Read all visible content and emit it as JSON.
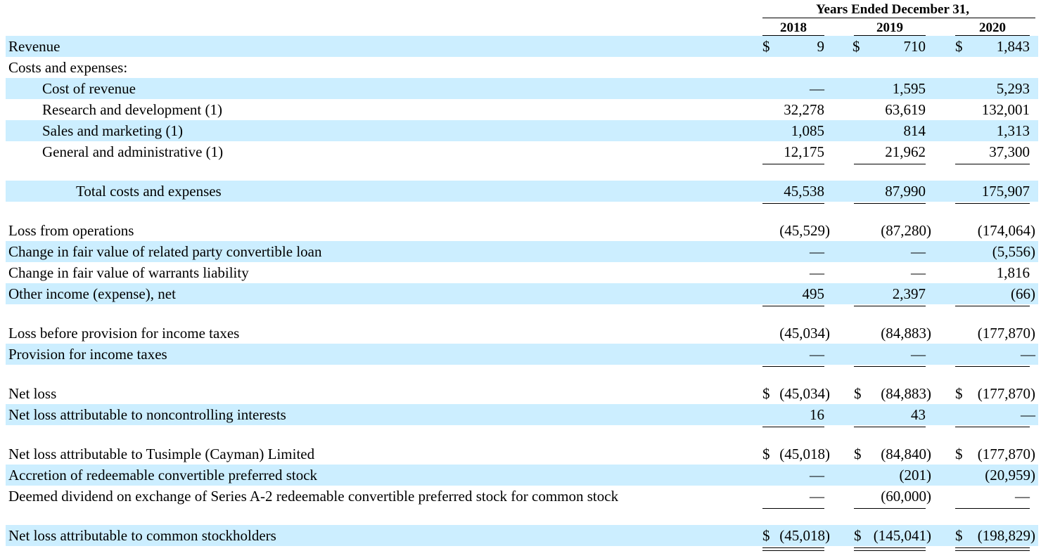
{
  "header": {
    "title": "Years Ended December 31,",
    "years": [
      "2018",
      "2019",
      "2020"
    ]
  },
  "rows": [
    {
      "label": "Revenue",
      "values": [
        "9",
        "710",
        "1,843"
      ],
      "dollar": [
        true,
        true,
        true
      ]
    },
    {
      "label": "Costs and expenses:",
      "values": [
        "",
        "",
        ""
      ]
    },
    {
      "label": "Cost of revenue",
      "values": [
        "—",
        "1,595",
        "5,293"
      ]
    },
    {
      "label": "Research and development (1)",
      "values": [
        "32,278",
        "63,619",
        "132,001"
      ]
    },
    {
      "label": "Sales and marketing (1)",
      "values": [
        "1,085",
        "814",
        "1,313"
      ]
    },
    {
      "label": "General and administrative (1)",
      "values": [
        "12,175",
        "21,962",
        "37,300"
      ]
    },
    {
      "label": "Total costs and expenses",
      "values": [
        "45,538",
        "87,990",
        "175,907"
      ]
    },
    {
      "label": "Loss from operations",
      "values": [
        "(45,529)",
        "(87,280)",
        "(174,064)"
      ]
    },
    {
      "label": "Change in fair value of related party convertible loan",
      "values": [
        "—",
        "—",
        "(5,556)"
      ]
    },
    {
      "label": "Change in fair value of warrants liability",
      "values": [
        "—",
        "—",
        "1,816"
      ]
    },
    {
      "label": "Other income (expense), net",
      "values": [
        "495",
        "2,397",
        "(66)"
      ]
    },
    {
      "label": "Loss before provision for income taxes",
      "values": [
        "(45,034)",
        "(84,883)",
        "(177,870)"
      ]
    },
    {
      "label": "Provision for income taxes",
      "values": [
        "—",
        "—",
        "—"
      ]
    },
    {
      "label": "Net loss",
      "values": [
        "(45,034)",
        "(84,883)",
        "(177,870)"
      ],
      "dollar": [
        true,
        true,
        true
      ]
    },
    {
      "label": "Net loss attributable to noncontrolling interests",
      "values": [
        "16",
        "43",
        "—"
      ]
    },
    {
      "label": "Net loss attributable to Tusimple (Cayman) Limited",
      "values": [
        "(45,018)",
        "(84,840)",
        "(177,870)"
      ],
      "dollar": [
        true,
        true,
        true
      ]
    },
    {
      "label": "Accretion of redeemable convertible preferred stock",
      "values": [
        "—",
        "(201)",
        "(20,959)"
      ]
    },
    {
      "label": "Deemed dividend on exchange of Series A-2 redeemable convertible preferred stock for common stock",
      "values": [
        "—",
        "(60,000)",
        "—"
      ]
    },
    {
      "label": "Net loss attributable to common stockholders",
      "values": [
        "(45,018)",
        "(145,041)",
        "(198,829)"
      ],
      "dollar": [
        true,
        true,
        true
      ]
    }
  ],
  "currency_symbol": "$",
  "colors": {
    "row_shade": "#cceeff",
    "text": "#000000"
  }
}
